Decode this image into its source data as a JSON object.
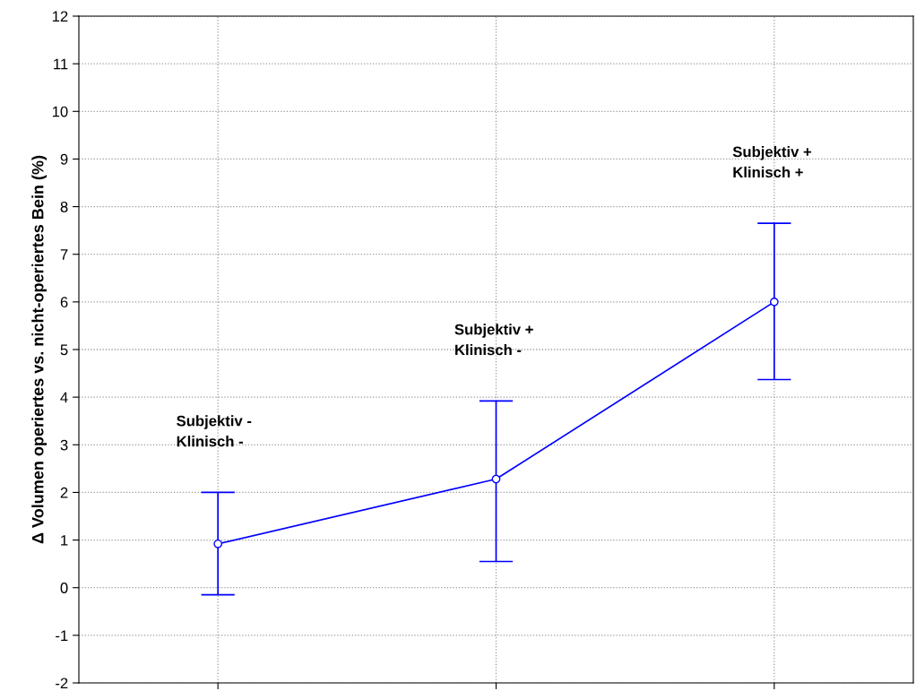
{
  "chart_data": {
    "type": "line",
    "ylabel": "Δ Volumen operiertes vs. nicht-operiertes Bein (%)",
    "categories": [
      null,
      null,
      null
    ],
    "series": [
      {
        "color": "#0000ff",
        "values": [
          0.92,
          2.28,
          6.0
        ],
        "errors": [
          [
            -0.15,
            2.0
          ],
          [
            0.55,
            3.92
          ],
          [
            4.37,
            7.65
          ]
        ]
      }
    ],
    "annotations": [
      "Subjektiv -\nKlinisch -",
      "Subjektiv +\nKlinisch -",
      "Subjektiv +\nKlinisch +"
    ],
    "ylim": [
      -2,
      12
    ],
    "yticks": [
      -2,
      -1,
      0,
      1,
      2,
      3,
      4,
      5,
      6,
      7,
      8,
      9,
      10,
      11,
      12
    ],
    "grid": true,
    "marker": "circle",
    "line_style": "solid",
    "tick_labels": "y"
  }
}
